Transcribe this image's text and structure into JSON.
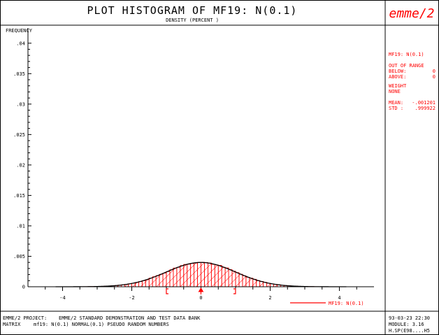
{
  "header": {
    "title": "PLOT HISTOGRAM OF MF19:   N(0.1)",
    "subtitle": "DENSITY  (PERCENT )",
    "logo_text": "emme/2"
  },
  "side_panel": {
    "matrix_label": "MF19:   N(0.1)",
    "out_of_range": "OUT OF RANGE",
    "below_label": "BELOW:",
    "below_value": "0",
    "above_label": "ABOVE:",
    "above_value": "0",
    "weight_label": "WEIGHT",
    "weight_value": "NONE",
    "mean_label": "MEAN:",
    "mean_value": "-.001201",
    "std_label": "STD :",
    "std_value": ".999922"
  },
  "footer": {
    "project_label": "EMME/2 PROJECT:",
    "project_value": "EMME/2 STANDARD DEMONSTRATION AND TEST DATA BANK",
    "matrix_label": "MATRIX",
    "matrix_value": "mf19: N(0.1)  NORMAL(0.1) PSEUDO RANDOM NUMBERS",
    "datetime": "93-03-23 22:30",
    "module": "MODULE:    3.16",
    "user": "H.SP(E98....H5"
  },
  "legend": {
    "label": "MF19: N(0.1)"
  },
  "colors": {
    "accent": "#ff0000",
    "curve": "#000000"
  },
  "chart_data": {
    "type": "bar",
    "title": "PLOT HISTOGRAM OF MF19:   N(0.1)",
    "subtitle": "DENSITY  (PERCENT )",
    "ylabel": "FREQUENCY",
    "xlim": [
      -5,
      5
    ],
    "ylim": [
      0,
      0.0425
    ],
    "xticks": [
      -4,
      -2,
      0,
      2,
      4
    ],
    "xtick_labels": [
      "-4",
      "-2",
      "0",
      "2",
      "4"
    ],
    "yticks": [
      0,
      0.005,
      0.01,
      0.015,
      0.02,
      0.025,
      0.03,
      0.035,
      0.04
    ],
    "ytick_labels": [
      "0",
      ".005",
      ".01",
      ".015",
      ".02",
      ".025",
      ".03",
      ".035",
      ".04"
    ],
    "bin_width": 0.1,
    "bin_start": -4.0,
    "bin_end": 4.0,
    "series": [
      {
        "name": "MF19: N(0.1)",
        "kind": "histogram"
      },
      {
        "name": "normal curve",
        "kind": "line",
        "mean": -0.001201,
        "std": 0.999922
      }
    ],
    "mean": -0.001201,
    "std": 0.999922,
    "hatch": "diagonal",
    "legend_position": "bottom-right"
  }
}
